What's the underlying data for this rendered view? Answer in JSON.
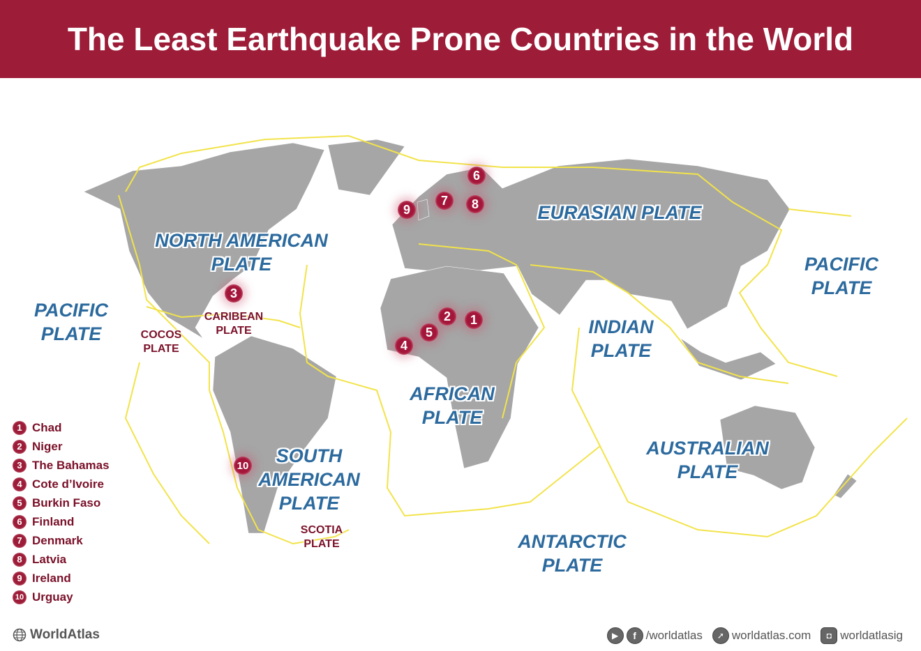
{
  "title": "The Least Earthquake Prone Countries in the World",
  "colors": {
    "header": "#9d1c38",
    "land": "#a6a6a6",
    "plate_boundary": "#f2e34a",
    "plate_label": "#2c6a9e",
    "marker": "#a3163a"
  },
  "plates": [
    {
      "id": "north-american",
      "label": "NORTH AMERICAN\nPLATE"
    },
    {
      "id": "eurasian",
      "label": "EURASIAN PLATE"
    },
    {
      "id": "pacific-west",
      "label": "PACIFIC\nPLATE"
    },
    {
      "id": "pacific-east",
      "label": "PACIFIC\nPLATE"
    },
    {
      "id": "indian",
      "label": "INDIAN\nPLATE"
    },
    {
      "id": "african",
      "label": "AFRICAN\nPLATE"
    },
    {
      "id": "south-american",
      "label": "SOUTH\nAMERICAN\nPLATE"
    },
    {
      "id": "australian",
      "label": "AUSTRALIAN\nPLATE"
    },
    {
      "id": "antarctic",
      "label": "ANTARCTIC\nPLATE"
    }
  ],
  "small_plates": [
    {
      "id": "caribbean",
      "label": "CARIBEAN\nPLATE"
    },
    {
      "id": "cocos",
      "label": "COCOS\nPLATE"
    },
    {
      "id": "scotia",
      "label": "SCOTIA\nPLATE"
    }
  ],
  "markers": [
    "1",
    "2",
    "3",
    "4",
    "5",
    "6",
    "7",
    "8",
    "9",
    "10"
  ],
  "legend": [
    {
      "num": "1",
      "label": "Chad"
    },
    {
      "num": "2",
      "label": "Niger"
    },
    {
      "num": "3",
      "label": "The Bahamas"
    },
    {
      "num": "4",
      "label": "Cote d’Ivoire"
    },
    {
      "num": "5",
      "label": "Burkin Faso"
    },
    {
      "num": "6",
      "label": "Finland"
    },
    {
      "num": "7",
      "label": "Denmark"
    },
    {
      "num": "8",
      "label": "Latvia"
    },
    {
      "num": "9",
      "label": "Ireland"
    },
    {
      "num": "10",
      "label": "Urguay"
    }
  ],
  "brand": {
    "name": "WorldAtlas",
    "icon": "globe-icon"
  },
  "footer": {
    "social_handle": "/worldatlas",
    "website": "worldatlas.com",
    "instagram": "worldatlasig",
    "icons": [
      "youtube-icon",
      "facebook-icon",
      "cursor-icon",
      "instagram-icon"
    ]
  }
}
